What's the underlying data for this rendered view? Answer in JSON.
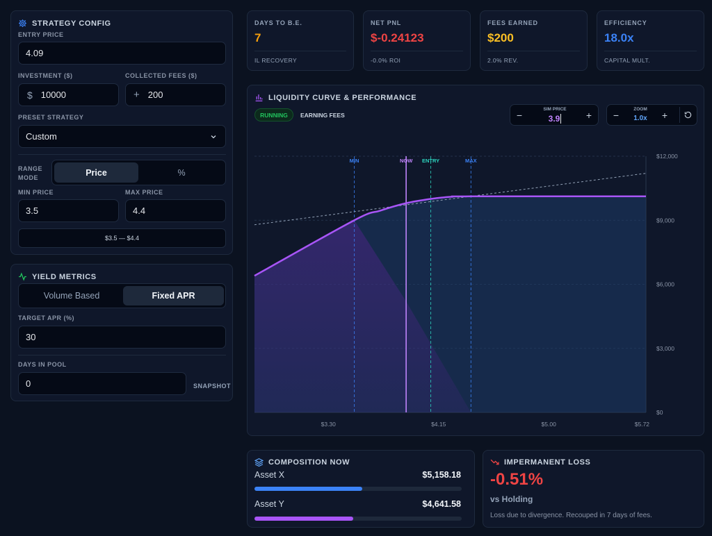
{
  "colors": {
    "background": "#0b1220",
    "panel": "#0f172a",
    "orange": "#f59e0b",
    "red": "#ef4444",
    "yellow": "#fbbf24",
    "blue": "#3b82f6",
    "purple": "#a855f7",
    "green": "#22c55e",
    "cyan": "#2dd4bf"
  },
  "strategy": {
    "title": "STRATEGY CONFIG",
    "icon": "gear-icon",
    "entry_price_label": "ENTRY PRICE",
    "entry_price": "4.09",
    "investment_label": "INVESTMENT ($)",
    "investment_prefix": "$",
    "investment": "10000",
    "fees_label": "COLLECTED FEES ($)",
    "fees_prefix": "+",
    "fees": "200",
    "preset_label": "PRESET STRATEGY",
    "preset_value": "Custom",
    "range_mode_label_1": "RANGE",
    "range_mode_label_2": "MODE",
    "range_mode_options": [
      "Price",
      "%"
    ],
    "range_mode_selected": "Price",
    "min_price_label": "MIN PRICE",
    "min_price": "3.5",
    "max_price_label": "MAX PRICE",
    "max_price": "4.4",
    "range_summary": "$3.5 — $4.4"
  },
  "yield": {
    "title": "YIELD METRICS",
    "icon": "activity-icon",
    "mode_options": [
      "Volume Based",
      "Fixed APR"
    ],
    "mode_selected": "Fixed APR",
    "apr_label": "TARGET APR (%)",
    "apr": "30",
    "days_label": "DAYS IN POOL",
    "days": "0",
    "snapshot_label": "SNAPSHOT"
  },
  "stats": [
    {
      "label": "DAYS TO B.E.",
      "value": "7",
      "sub": "IL RECOVERY",
      "color": "#f59e0b"
    },
    {
      "label": "NET PNL",
      "value": "$-0.24123",
      "sub": "-0.0% ROI",
      "color": "#ef4444"
    },
    {
      "label": "FEES EARNED",
      "value": "$200",
      "sub": "2.0% REV.",
      "color": "#fbbf24"
    },
    {
      "label": "EFFICIENCY",
      "value": "18.0x",
      "sub": "CAPITAL MULT.",
      "color": "#3b82f6"
    }
  ],
  "chart_panel": {
    "title": "LIQUIDITY CURVE & PERFORMANCE",
    "icon": "bar-chart-icon",
    "status_badge": "RUNNING",
    "status_text": "EARNING FEES",
    "sim_price_label": "SIM PRICE",
    "sim_price": "3.9",
    "zoom_label": "ZOOM",
    "zoom": "1.0x"
  },
  "chart_data": {
    "type": "area",
    "x_ticks": [
      "$3.30",
      "$4.15",
      "$5.00",
      "$5.72"
    ],
    "y_ticks": [
      "$12,000",
      "$9,000",
      "$6,000",
      "$3,000",
      "$0"
    ],
    "xlim": [
      2.73,
      5.75
    ],
    "ylim": [
      0,
      12000
    ],
    "markers": [
      {
        "label": "MIN",
        "x": 3.5,
        "color": "#3b82f6"
      },
      {
        "label": "NOW",
        "x": 3.9,
        "color": "#c084fc"
      },
      {
        "label": "ENTRY",
        "x": 4.09,
        "color": "#2dd4bf"
      },
      {
        "label": "MAX",
        "x": 4.4,
        "color": "#3b82f6"
      }
    ],
    "series": [
      {
        "values": [
          [
            2.73,
            6400
          ],
          [
            3.5,
            9000
          ],
          [
            3.7,
            9450
          ],
          [
            3.9,
            9800
          ],
          [
            4.09,
            10000
          ],
          [
            4.25,
            10100
          ],
          [
            4.4,
            10120
          ],
          [
            5.75,
            10120
          ]
        ]
      },
      {
        "values": [
          [
            2.73,
            8790
          ],
          [
            5.75,
            11200
          ]
        ]
      },
      {
        "values": [
          [
            3.5,
            9000
          ],
          [
            3.9,
            5200
          ],
          [
            4.4,
            0
          ]
        ]
      }
    ]
  },
  "composition": {
    "title": "COMPOSITION NOW",
    "icon": "layers-icon",
    "assets": [
      {
        "name": "Asset X",
        "value": "$5,158.18",
        "fraction": 0.52,
        "color": "#3b82f6"
      },
      {
        "name": "Asset Y",
        "value": "$4,641.58",
        "fraction": 0.475,
        "color": "#a855f7"
      }
    ]
  },
  "il": {
    "title": "IMPERMANENT LOSS",
    "icon": "trending-down-icon",
    "value": "-0.51%",
    "subtitle": "vs Holding",
    "note": "Loss due to divergence. Recouped in 7 days of fees."
  }
}
